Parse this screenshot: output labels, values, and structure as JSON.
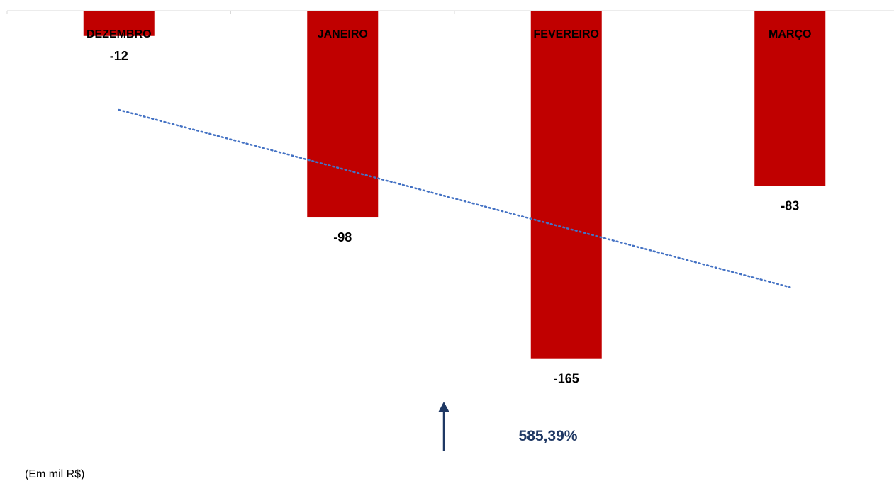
{
  "chart_data": {
    "type": "bar",
    "categories": [
      "DEZEMBRO",
      "JANEIRO",
      "FEVEREIRO",
      "MARÇO"
    ],
    "values": [
      -12,
      -98,
      -165,
      -83
    ],
    "value_labels": [
      "-12",
      "-98",
      "-165",
      "-83"
    ],
    "trendline": {
      "style": "dotted",
      "kind": "linear",
      "start_value": -47,
      "end_value": -131
    },
    "ylim": [
      -180,
      0
    ],
    "grid": false,
    "legend": "none",
    "colors": {
      "bar": "#c00000",
      "trendline": "#4472c4",
      "axis": "#d9d9d9",
      "annotation": "#1f3864"
    },
    "annotation": {
      "text": "585,39%",
      "icon": "arrow-up-icon"
    },
    "note": "(Em mil R$)"
  }
}
